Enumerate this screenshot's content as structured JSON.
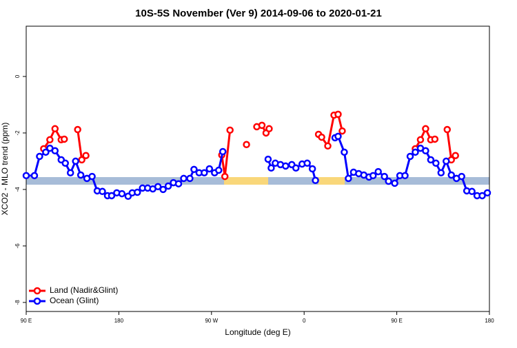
{
  "chart_data": {
    "type": "line",
    "title": "10S-5S November (Ver 9)   2014-09-06 to 2020-01-21",
    "x_label": "Longitude (deg E)",
    "y_label": "XCO2 - MLO trend (ppm)",
    "xlim": [
      90,
      540
    ],
    "ylim": [
      -8.32,
      1.78
    ],
    "xticks": [
      {
        "value": 90,
        "label": "90 E"
      },
      180,
      {
        "value": 270,
        "label": "90 W"
      },
      {
        "value": 360,
        "label": "0"
      },
      {
        "value": 450,
        "label": "90 E"
      },
      {
        "value": 540,
        "label": "180"
      }
    ],
    "yticks": [
      -8,
      -6,
      -4,
      -2,
      0
    ],
    "legend": "bottom-left",
    "series": [
      {
        "name": "Land (Nadir&Glint)",
        "color": "#ff0000",
        "x": [
          107,
          113,
          118,
          124,
          127,
          null,
          140,
          144,
          148,
          null,
          280,
          283,
          288,
          null,
          304,
          null,
          314,
          319,
          323,
          326,
          null,
          374,
          377,
          383,
          389,
          393,
          397,
          null,
          468,
          473,
          478,
          483,
          487,
          null,
          499,
          503,
          507
        ],
        "values": [
          -2.56,
          -2.24,
          -1.85,
          -2.24,
          -2.22,
          null,
          -1.88,
          -2.95,
          -2.8,
          null,
          -2.78,
          -3.54,
          -1.9,
          null,
          -2.41,
          null,
          -1.78,
          -1.73,
          -2.0,
          -1.85,
          null,
          -2.05,
          -2.15,
          -2.46,
          -1.37,
          -1.34,
          -1.93,
          null,
          -2.56,
          -2.24,
          -1.85,
          -2.24,
          -2.22,
          null,
          -1.88,
          -2.95,
          -2.8
        ]
      },
      {
        "name": "Ocean (Glint)",
        "color": "#0000ff",
        "x": [
          90,
          98,
          103,
          109,
          113,
          118,
          124,
          128,
          133,
          138,
          143,
          149,
          154,
          159,
          164,
          169,
          173,
          178,
          183,
          189,
          193,
          198,
          203,
          208,
          213,
          218,
          223,
          228,
          233,
          238,
          243,
          249,
          253,
          258,
          263,
          268,
          273,
          277,
          281,
          null,
          325,
          328,
          332,
          337,
          342,
          348,
          352,
          358,
          363,
          368,
          371,
          null,
          390,
          393,
          399,
          403,
          408,
          413,
          418,
          423,
          427,
          432,
          438,
          442,
          448,
          453,
          458,
          463,
          468,
          473,
          478,
          483,
          488,
          493,
          498,
          503,
          508,
          513,
          518,
          523,
          528,
          533,
          538
        ],
        "values": [
          -3.51,
          -3.51,
          -2.83,
          -2.68,
          -2.54,
          -2.63,
          -2.95,
          -3.07,
          -3.41,
          -3.0,
          -3.49,
          -3.61,
          -3.54,
          -4.05,
          -4.07,
          -4.22,
          -4.22,
          -4.12,
          -4.15,
          -4.24,
          -4.12,
          -4.1,
          -3.95,
          -3.95,
          -3.98,
          -3.9,
          -4.0,
          -3.88,
          -3.76,
          -3.8,
          -3.61,
          -3.61,
          -3.29,
          -3.41,
          -3.41,
          -3.27,
          -3.41,
          -3.32,
          -2.66,
          null,
          -2.93,
          -3.24,
          -3.07,
          -3.12,
          -3.17,
          -3.12,
          -3.24,
          -3.1,
          -3.07,
          -3.27,
          -3.68,
          null,
          -2.17,
          -2.12,
          -2.68,
          -3.61,
          -3.39,
          -3.44,
          -3.49,
          -3.56,
          -3.51,
          -3.37,
          -3.54,
          -3.71,
          -3.78,
          -3.51,
          -3.51,
          -2.83,
          -2.68,
          -2.54,
          -2.63,
          -2.95,
          -3.07,
          -3.41,
          -3.0,
          -3.49,
          -3.61,
          -3.54,
          -4.05,
          -4.07,
          -4.22,
          -4.22,
          -4.12
        ]
      }
    ]
  }
}
